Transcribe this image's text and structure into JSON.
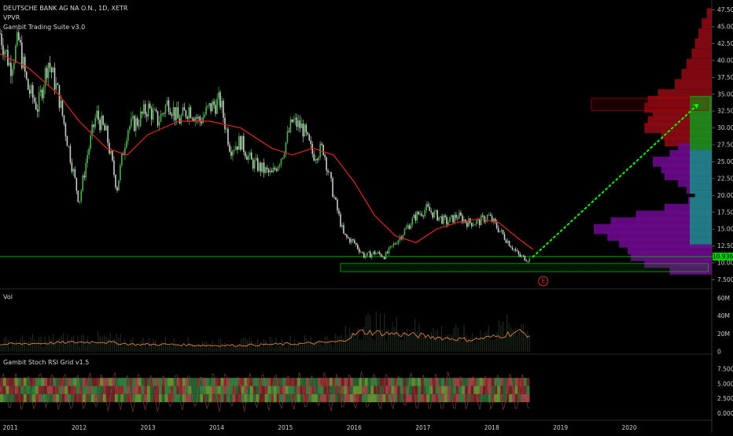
{
  "header": {
    "symbol_line": "DEUTSCHE BANK AG NA O.N., 1D, XETR",
    "indicator_1": "VPVR",
    "indicator_2": "Gambit Trading Suite v3.0"
  },
  "volume_pane": {
    "title": "Vol",
    "ticks": [
      "60M",
      "40M",
      "20M",
      "0"
    ],
    "tick_values": [
      60,
      40,
      20,
      0
    ]
  },
  "stoch_pane": {
    "title": "Gambit Stoch RSI Grid v1.5",
    "ticks": [
      "7.5000",
      "5.0000",
      "2.5000",
      "0.0000"
    ],
    "tick_values": [
      7.5,
      5,
      2.5,
      0
    ]
  },
  "event_marker": "E",
  "price_label": "10.936",
  "colors": {
    "background": "#000000",
    "ma_line": "#e0261f",
    "candle_up": "#4caf50",
    "candle_down": "#c8c8c8",
    "projection": "#00ff00",
    "support_line": "#00b400",
    "vp_upper": "#8b0a14",
    "vp_upper_value": "#1a8a1a",
    "vp_mid": "#6a0a8a",
    "vp_mid_value": "#1f7f86",
    "volume_line": "#e0803a",
    "price_tag": "#00d000"
  },
  "chart_data": [
    {
      "type": "line",
      "title": "DEUTSCHE BANK AG NA O.N., 1D, XETR",
      "x_ticks": [
        "2011",
        "2012",
        "2013",
        "2014",
        "2015",
        "2016",
        "2017",
        "2018",
        "2019",
        "2020"
      ],
      "y_ticks": [
        "47.500",
        "45.000",
        "42.500",
        "40.000",
        "37.500",
        "35.000",
        "32.500",
        "30.000",
        "27.500",
        "25.000",
        "22.500",
        "20.000",
        "17.500",
        "15.000",
        "12.500",
        "10.000",
        "7.500"
      ],
      "y_tick_values": [
        47.5,
        45,
        42.5,
        40,
        37.5,
        35,
        32.5,
        30,
        27.5,
        25,
        22.5,
        20,
        17.5,
        15,
        12.5,
        10,
        7.5
      ],
      "ylim": [
        6.5,
        48.5
      ],
      "xlim": [
        2010.85,
        2021.2
      ],
      "series": [
        {
          "x": [
            2010.85,
            2011.0,
            2011.12,
            2011.25,
            2011.4,
            2011.55,
            2011.7,
            2011.85,
            2012.0,
            2012.12,
            2012.25,
            2012.4,
            2012.55,
            2012.7,
            2012.85,
            2013.0,
            2013.15,
            2013.3,
            2013.45,
            2013.6,
            2013.75,
            2013.9,
            2014.05,
            2014.2,
            2014.35,
            2014.5,
            2014.65,
            2014.8,
            2014.95,
            2015.1,
            2015.25,
            2015.4,
            2015.55,
            2015.7,
            2015.85,
            2016.0,
            2016.15,
            2016.3,
            2016.45,
            2016.6,
            2016.75,
            2016.9,
            2017.05,
            2017.2,
            2017.35,
            2017.5,
            2017.65,
            2017.8,
            2017.95,
            2018.1,
            2018.25,
            2018.4,
            2018.55
          ],
          "values": [
            44,
            39,
            43,
            36,
            33,
            40,
            35,
            27,
            19,
            26,
            32,
            29,
            21,
            30,
            31,
            33,
            31,
            34,
            31,
            33,
            31,
            33,
            34,
            27,
            28,
            25,
            24,
            23,
            26,
            31,
            30,
            26,
            27,
            20,
            14,
            13,
            11,
            11.5,
            11,
            13,
            15,
            17,
            18,
            17,
            16,
            17,
            16,
            16,
            17,
            15,
            13,
            11,
            10.5
          ]
        },
        {
          "x": [
            2010.85,
            2011.25,
            2011.7,
            2012.0,
            2012.4,
            2012.7,
            2013.0,
            2013.45,
            2013.9,
            2014.35,
            2014.8,
            2015.1,
            2015.4,
            2015.7,
            2016.0,
            2016.3,
            2016.6,
            2016.9,
            2017.2,
            2017.5,
            2017.8,
            2018.1,
            2018.4,
            2018.6
          ],
          "values": [
            41,
            39,
            35,
            31,
            27,
            26,
            29,
            31,
            31,
            30,
            27,
            26,
            27,
            26,
            22,
            17,
            14,
            13,
            15,
            16,
            16.5,
            16,
            13.5,
            12
          ]
        }
      ],
      "projection": {
        "x": [
          2018.6,
          2021.0
        ],
        "values": [
          10.9,
          33.5
        ]
      },
      "support_level": 10.936,
      "zones": [
        {
          "x": [
            2015.8,
            2021.15
          ],
          "y": [
            8.7,
            9.9
          ]
        },
        {
          "x": [
            2019.45,
            2021.15
          ],
          "y": [
            32.6,
            34.4
          ]
        }
      ],
      "volume_profile": {
        "prices": [
          47,
          45.5,
          44,
          42.5,
          41,
          39.5,
          38,
          36.5,
          35,
          34,
          33,
          32,
          31,
          30,
          29,
          28,
          27,
          26,
          25,
          24,
          23,
          22,
          21,
          20,
          19,
          18,
          17,
          16,
          15,
          14,
          13,
          12,
          11,
          10,
          9
        ],
        "values": [
          3,
          6,
          8,
          10,
          12,
          15,
          18,
          22,
          32,
          38,
          40,
          35,
          38,
          40,
          30,
          28,
          20,
          25,
          35,
          30,
          28,
          20,
          15,
          10,
          14,
          28,
          45,
          60,
          70,
          62,
          55,
          50,
          48,
          40,
          25
        ]
      }
    },
    {
      "type": "line",
      "title": "Vol",
      "ylim": [
        0,
        65
      ],
      "x": [
        2010.85,
        2011.3,
        2011.8,
        2012.3,
        2012.8,
        2013.3,
        2013.8,
        2014.3,
        2014.8,
        2015.3,
        2015.8,
        2016.1,
        2016.5,
        2016.9,
        2017.3,
        2017.7,
        2018.1,
        2018.4,
        2018.55
      ],
      "values": [
        8,
        9,
        10,
        11,
        8,
        8,
        7,
        7,
        8,
        9,
        11,
        22,
        20,
        18,
        15,
        13,
        17,
        22,
        18
      ]
    }
  ]
}
